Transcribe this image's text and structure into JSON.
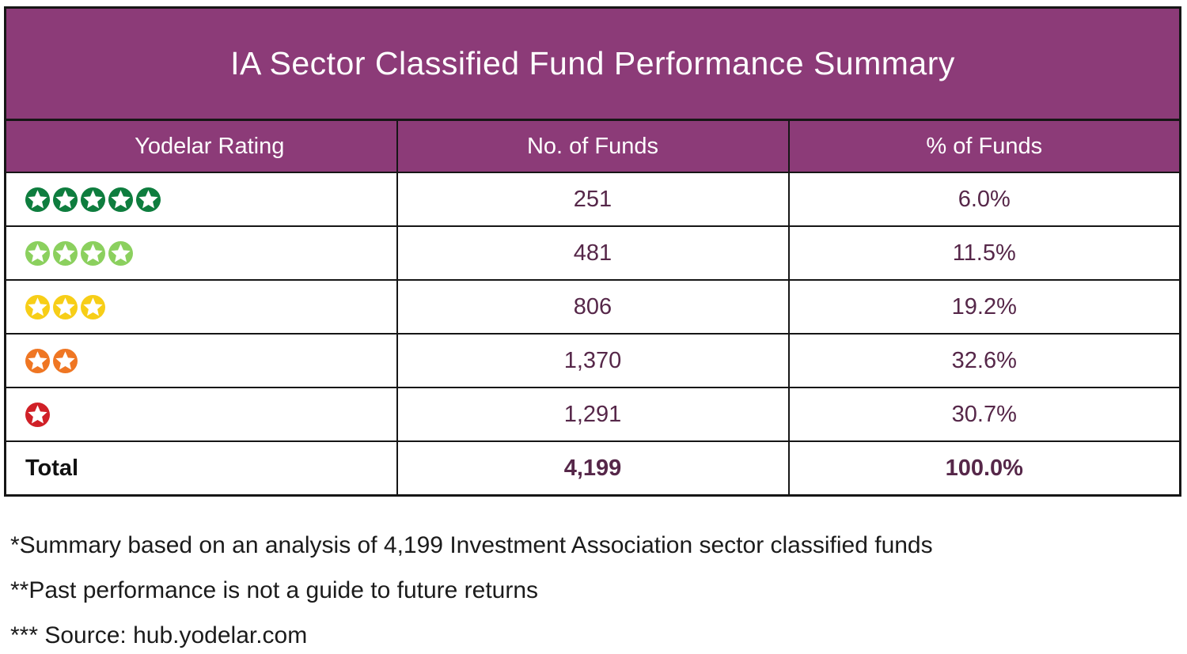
{
  "title": "IA Sector Classified Fund Performance Summary",
  "colors": {
    "header_bg": "#8c3b78",
    "header_text": "#ffffff",
    "value_text": "#562749",
    "border": "#161616",
    "total_label_text": "#111111",
    "star_5": "#0e7d3e",
    "star_4": "#8bd05e",
    "star_3": "#f7ce17",
    "star_2": "#ef7623",
    "star_1": "#d02027"
  },
  "table": {
    "columns": [
      "Yodelar Rating",
      "No. of Funds",
      "% of Funds"
    ],
    "rows": [
      {
        "stars": 5,
        "star_color": "#0e7d3e",
        "funds": "251",
        "pct": "6.0%"
      },
      {
        "stars": 4,
        "star_color": "#8bd05e",
        "funds": "481",
        "pct": "11.5%"
      },
      {
        "stars": 3,
        "star_color": "#f7ce17",
        "funds": "806",
        "pct": "19.2%"
      },
      {
        "stars": 2,
        "star_color": "#ef7623",
        "funds": "1,370",
        "pct": "32.6%"
      },
      {
        "stars": 1,
        "star_color": "#d02027",
        "funds": "1,291",
        "pct": "30.7%"
      }
    ],
    "total": {
      "label": "Total",
      "funds": "4,199",
      "pct": "100.0%"
    }
  },
  "footnotes": [
    "*Summary based on an analysis of 4,199 Investment Association sector classified funds",
    "**Past performance is not a guide to future returns",
    "*** Source: hub.yodelar.com"
  ],
  "chart_data": {
    "type": "table",
    "title": "IA Sector Classified Fund Performance Summary",
    "columns": [
      "Yodelar Rating",
      "No. of Funds",
      "% of Funds"
    ],
    "rows": [
      {
        "rating_stars": 5,
        "no_of_funds": 251,
        "pct_of_funds": 6.0
      },
      {
        "rating_stars": 4,
        "no_of_funds": 481,
        "pct_of_funds": 11.5
      },
      {
        "rating_stars": 3,
        "no_of_funds": 806,
        "pct_of_funds": 19.2
      },
      {
        "rating_stars": 2,
        "no_of_funds": 1370,
        "pct_of_funds": 32.6
      },
      {
        "rating_stars": 1,
        "no_of_funds": 1291,
        "pct_of_funds": 30.7
      }
    ],
    "total": {
      "no_of_funds": 4199,
      "pct_of_funds": 100.0
    }
  }
}
